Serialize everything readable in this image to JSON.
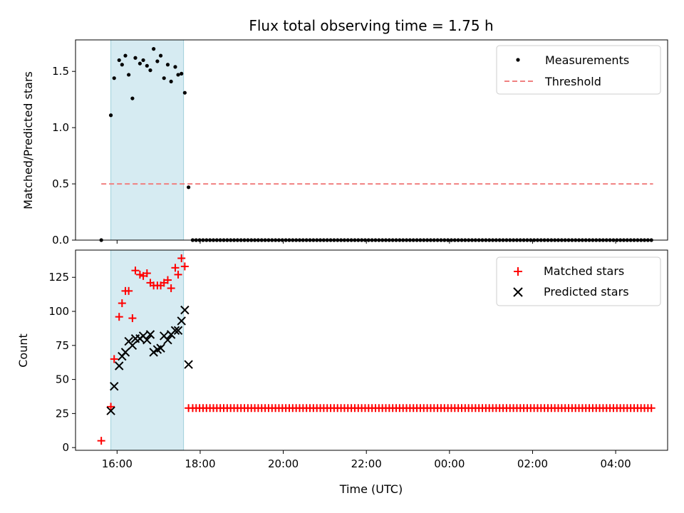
{
  "chart_data": [
    {
      "type": "scatter",
      "title": "Flux total observing time = 1.75 h",
      "xlabel": "",
      "ylabel": "Matched/Predicted stars",
      "xlim": [
        15.0,
        29.25
      ],
      "ylim": [
        0.0,
        1.78
      ],
      "yticks": [
        0.0,
        0.5,
        1.0,
        1.5
      ],
      "ytick_labels": [
        "0.0",
        "0.5",
        "1.0",
        "1.5"
      ],
      "shaded_span": [
        15.85,
        17.6
      ],
      "legend": {
        "position": "top-right",
        "entries": [
          "Measurements",
          "Threshold"
        ]
      },
      "threshold": {
        "value": 0.5,
        "x_range": [
          15.62,
          28.9
        ],
        "color": "#f08080"
      },
      "series": [
        {
          "name": "Measurements",
          "color": "#000000",
          "points": [
            [
              15.62,
              0.0
            ],
            [
              15.85,
              1.11
            ],
            [
              15.93,
              1.44
            ],
            [
              16.05,
              1.6
            ],
            [
              16.12,
              1.56
            ],
            [
              16.2,
              1.64
            ],
            [
              16.28,
              1.47
            ],
            [
              16.37,
              1.26
            ],
            [
              16.44,
              1.62
            ],
            [
              16.55,
              1.57
            ],
            [
              16.63,
              1.6
            ],
            [
              16.72,
              1.55
            ],
            [
              16.8,
              1.51
            ],
            [
              16.88,
              1.7
            ],
            [
              16.97,
              1.59
            ],
            [
              17.05,
              1.64
            ],
            [
              17.13,
              1.44
            ],
            [
              17.22,
              1.56
            ],
            [
              17.3,
              1.41
            ],
            [
              17.4,
              1.54
            ],
            [
              17.47,
              1.47
            ],
            [
              17.55,
              1.48
            ],
            [
              17.63,
              1.31
            ],
            [
              17.72,
              0.47
            ]
          ],
          "zero_run": {
            "start": 17.82,
            "end": 28.9,
            "step": 0.083,
            "y": 0.0
          }
        }
      ]
    },
    {
      "type": "scatter",
      "title": "",
      "xlabel": "Time (UTC)",
      "ylabel": "Count",
      "xlim": [
        15.0,
        29.25
      ],
      "ylim": [
        -2,
        145
      ],
      "xticks": [
        16,
        18,
        20,
        22,
        24,
        26,
        28
      ],
      "xtick_labels": [
        "16:00",
        "18:00",
        "20:00",
        "22:00",
        "00:00",
        "02:00",
        "04:00"
      ],
      "yticks": [
        0,
        25,
        50,
        75,
        100,
        125
      ],
      "ytick_labels": [
        "0",
        "25",
        "50",
        "75",
        "100",
        "125"
      ],
      "shaded_span": [
        15.85,
        17.6
      ],
      "legend": {
        "position": "top-right",
        "entries": [
          "Matched stars",
          "Predicted stars"
        ]
      },
      "series": [
        {
          "name": "Matched stars",
          "marker": "+",
          "color": "#ff0000",
          "points": [
            [
              15.62,
              5
            ],
            [
              15.85,
              30
            ],
            [
              15.93,
              65
            ],
            [
              16.05,
              96
            ],
            [
              16.12,
              106
            ],
            [
              16.2,
              115
            ],
            [
              16.28,
              115
            ],
            [
              16.37,
              95
            ],
            [
              16.44,
              130
            ],
            [
              16.55,
              127
            ],
            [
              16.63,
              126
            ],
            [
              16.72,
              128
            ],
            [
              16.8,
              121
            ],
            [
              16.88,
              119
            ],
            [
              16.97,
              119
            ],
            [
              17.05,
              119
            ],
            [
              17.13,
              121
            ],
            [
              17.22,
              123
            ],
            [
              17.3,
              117
            ],
            [
              17.4,
              132
            ],
            [
              17.47,
              127
            ],
            [
              17.55,
              139
            ],
            [
              17.63,
              133
            ],
            [
              17.72,
              29
            ]
          ],
          "zero_run": {
            "start": 17.82,
            "end": 28.9,
            "step": 0.083,
            "y": 29
          }
        },
        {
          "name": "Predicted stars",
          "marker": "x",
          "color": "#000000",
          "points": [
            [
              15.85,
              27
            ],
            [
              15.93,
              45
            ],
            [
              16.05,
              60
            ],
            [
              16.12,
              67
            ],
            [
              16.2,
              70
            ],
            [
              16.28,
              78
            ],
            [
              16.37,
              75
            ],
            [
              16.44,
              80
            ],
            [
              16.55,
              80
            ],
            [
              16.63,
              82
            ],
            [
              16.72,
              79
            ],
            [
              16.8,
              83
            ],
            [
              16.88,
              70
            ],
            [
              16.97,
              72
            ],
            [
              17.05,
              73
            ],
            [
              17.13,
              82
            ],
            [
              17.22,
              79
            ],
            [
              17.3,
              83
            ],
            [
              17.4,
              86
            ],
            [
              17.47,
              86
            ],
            [
              17.55,
              93
            ],
            [
              17.63,
              101
            ],
            [
              17.72,
              61
            ]
          ]
        }
      ]
    }
  ]
}
